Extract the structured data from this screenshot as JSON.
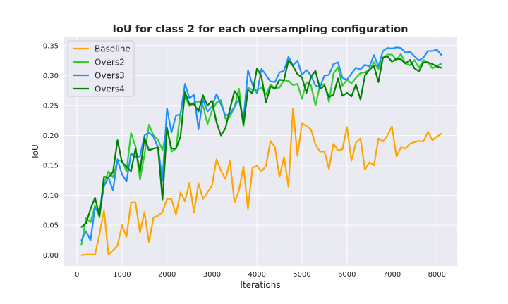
{
  "chart_data": {
    "type": "line",
    "title": "IoU for class 2 for each oversampling configuration",
    "xlabel": "Iterations",
    "ylabel": "IoU",
    "xlim": [
      -300,
      8450
    ],
    "ylim": [
      -0.018,
      0.365
    ],
    "xticks": [
      0,
      1000,
      2000,
      3000,
      4000,
      5000,
      6000,
      7000,
      8000
    ],
    "yticks": [
      0.0,
      0.05,
      0.1,
      0.15,
      0.2,
      0.25,
      0.3,
      0.35
    ],
    "grid": true,
    "background": "#eaeaf2",
    "legend_position": "top-left",
    "x": [
      100,
      200,
      300,
      400,
      500,
      600,
      700,
      800,
      900,
      1000,
      1100,
      1200,
      1300,
      1400,
      1500,
      1600,
      1700,
      1800,
      1900,
      2000,
      2100,
      2200,
      2300,
      2400,
      2500,
      2600,
      2700,
      2800,
      2900,
      3000,
      3100,
      3200,
      3300,
      3400,
      3500,
      3600,
      3700,
      3800,
      3900,
      4000,
      4100,
      4200,
      4300,
      4400,
      4500,
      4600,
      4700,
      4800,
      4900,
      5000,
      5100,
      5200,
      5300,
      5400,
      5500,
      5600,
      5700,
      5800,
      5900,
      6000,
      6100,
      6200,
      6300,
      6400,
      6500,
      6600,
      6700,
      6800,
      6900,
      7000,
      7100,
      7200,
      7300,
      7400,
      7500,
      7600,
      7700,
      7800,
      7900,
      8000,
      8100
    ],
    "series": [
      {
        "name": "Baseline",
        "color": "#ffa500",
        "values": [
          0.0,
          0.001,
          0.001,
          0.001,
          0.035,
          0.075,
          0.001,
          0.008,
          0.016,
          0.05,
          0.031,
          0.088,
          0.088,
          0.038,
          0.072,
          0.021,
          0.063,
          0.066,
          0.072,
          0.094,
          0.094,
          0.068,
          0.105,
          0.09,
          0.121,
          0.071,
          0.12,
          0.094,
          0.105,
          0.116,
          0.16,
          0.141,
          0.127,
          0.157,
          0.088,
          0.108,
          0.148,
          0.077,
          0.146,
          0.149,
          0.14,
          0.149,
          0.191,
          0.18,
          0.131,
          0.164,
          0.114,
          0.245,
          0.166,
          0.22,
          0.216,
          0.21,
          0.185,
          0.173,
          0.173,
          0.144,
          0.186,
          0.175,
          0.177,
          0.214,
          0.158,
          0.188,
          0.195,
          0.143,
          0.155,
          0.15,
          0.195,
          0.19,
          0.2,
          0.215,
          0.165,
          0.18,
          0.178,
          0.186,
          0.189,
          0.191,
          0.19,
          0.206,
          0.192,
          0.198,
          0.203
        ]
      },
      {
        "name": "Overs2",
        "color": "#32cd32",
        "values": [
          0.018,
          0.062,
          0.055,
          0.083,
          0.063,
          0.12,
          0.14,
          0.13,
          0.158,
          0.158,
          0.14,
          0.204,
          0.182,
          0.126,
          0.168,
          0.218,
          0.2,
          0.193,
          0.175,
          0.213,
          0.173,
          0.178,
          0.238,
          0.264,
          0.249,
          0.255,
          0.257,
          0.25,
          0.219,
          0.241,
          0.255,
          0.259,
          0.228,
          0.232,
          0.247,
          0.278,
          0.215,
          0.28,
          0.276,
          0.275,
          0.28,
          0.268,
          0.285,
          0.279,
          0.28,
          0.292,
          0.291,
          0.284,
          0.286,
          0.261,
          0.289,
          0.284,
          0.25,
          0.283,
          0.286,
          0.256,
          0.303,
          0.314,
          0.283,
          0.293,
          0.287,
          0.296,
          0.304,
          0.305,
          0.31,
          0.322,
          0.311,
          0.329,
          0.335,
          0.335,
          0.326,
          0.336,
          0.32,
          0.317,
          0.326,
          0.313,
          0.326,
          0.322,
          0.312,
          0.316,
          0.32
        ]
      },
      {
        "name": "Overs3",
        "color": "#1e90ff",
        "values": [
          0.025,
          0.04,
          0.025,
          0.08,
          0.07,
          0.115,
          0.13,
          0.108,
          0.16,
          0.135,
          0.123,
          0.17,
          0.164,
          0.165,
          0.2,
          0.205,
          0.198,
          0.18,
          0.125,
          0.245,
          0.205,
          0.233,
          0.235,
          0.286,
          0.262,
          0.268,
          0.21,
          0.26,
          0.24,
          0.248,
          0.269,
          0.252,
          0.233,
          0.236,
          0.248,
          0.26,
          0.226,
          0.309,
          0.285,
          0.27,
          0.311,
          0.301,
          0.29,
          0.289,
          0.305,
          0.308,
          0.331,
          0.317,
          0.325,
          0.301,
          0.309,
          0.3,
          0.283,
          0.281,
          0.3,
          0.301,
          0.319,
          0.322,
          0.296,
          0.293,
          0.303,
          0.313,
          0.31,
          0.318,
          0.315,
          0.334,
          0.315,
          0.341,
          0.346,
          0.345,
          0.347,
          0.346,
          0.338,
          0.34,
          0.332,
          0.325,
          0.33,
          0.341,
          0.341,
          0.343,
          0.334
        ]
      },
      {
        "name": "Overs4",
        "color": "#008000",
        "values": [
          0.047,
          0.053,
          0.077,
          0.096,
          0.066,
          0.131,
          0.13,
          0.139,
          0.192,
          0.155,
          0.148,
          0.14,
          0.178,
          0.14,
          0.196,
          0.175,
          0.178,
          0.18,
          0.093,
          0.212,
          0.178,
          0.178,
          0.198,
          0.272,
          0.252,
          0.252,
          0.24,
          0.267,
          0.25,
          0.258,
          0.222,
          0.2,
          0.212,
          0.244,
          0.274,
          0.264,
          0.218,
          0.276,
          0.27,
          0.312,
          0.298,
          0.255,
          0.282,
          0.278,
          0.293,
          0.292,
          0.325,
          0.316,
          0.302,
          0.297,
          0.271,
          0.298,
          0.308,
          0.278,
          0.283,
          0.264,
          0.268,
          0.295,
          0.266,
          0.271,
          0.265,
          0.285,
          0.26,
          0.3,
          0.31,
          0.316,
          0.289,
          0.33,
          0.332,
          0.323,
          0.328,
          0.327,
          0.32,
          0.326,
          0.312,
          0.307,
          0.322,
          0.322,
          0.319,
          0.315,
          0.313
        ]
      }
    ]
  }
}
